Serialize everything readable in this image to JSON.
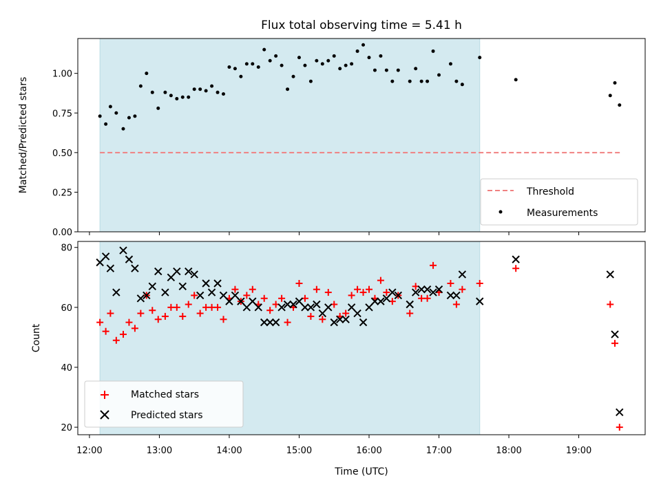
{
  "chart_data": [
    {
      "type": "scatter",
      "title": "Flux total observing time = 5.41 h",
      "xlabel": "",
      "ylabel": "Matched/Predicted stars",
      "xlim": [
        "11:50",
        "19:57"
      ],
      "ylim": [
        0,
        1.22
      ],
      "yticks": [
        "0.00",
        "0.25",
        "0.50",
        "0.75",
        "1.00"
      ],
      "grid": false,
      "legend_position": "lower-right",
      "shaded_span": {
        "start": "12:09",
        "end": "17:35",
        "color": "#d4eaf0"
      },
      "threshold": {
        "name": "Threshold",
        "value": 0.5,
        "x_start": "12:09",
        "x_end": "19:36",
        "color": "#f08080"
      },
      "series": [
        {
          "name": "Measurements",
          "color": "#000000",
          "points": [
            [
              "12:09",
              0.73
            ],
            [
              "12:14",
              0.68
            ],
            [
              "12:18",
              0.79
            ],
            [
              "12:23",
              0.75
            ],
            [
              "12:29",
              0.65
            ],
            [
              "12:34",
              0.72
            ],
            [
              "12:39",
              0.73
            ],
            [
              "12:44",
              0.92
            ],
            [
              "12:49",
              1.0
            ],
            [
              "12:54",
              0.88
            ],
            [
              "12:59",
              0.78
            ],
            [
              "13:05",
              0.88
            ],
            [
              "13:10",
              0.86
            ],
            [
              "13:15",
              0.84
            ],
            [
              "13:20",
              0.85
            ],
            [
              "13:25",
              0.85
            ],
            [
              "13:30",
              0.9
            ],
            [
              "13:35",
              0.9
            ],
            [
              "13:40",
              0.89
            ],
            [
              "13:45",
              0.92
            ],
            [
              "13:50",
              0.88
            ],
            [
              "13:55",
              0.87
            ],
            [
              "14:00",
              1.04
            ],
            [
              "14:05",
              1.03
            ],
            [
              "14:10",
              0.98
            ],
            [
              "14:15",
              1.06
            ],
            [
              "14:20",
              1.06
            ],
            [
              "14:25",
              1.04
            ],
            [
              "14:30",
              1.15
            ],
            [
              "14:35",
              1.08
            ],
            [
              "14:40",
              1.11
            ],
            [
              "14:45",
              1.05
            ],
            [
              "14:50",
              0.9
            ],
            [
              "14:55",
              0.98
            ],
            [
              "15:00",
              1.1
            ],
            [
              "15:05",
              1.05
            ],
            [
              "15:10",
              0.95
            ],
            [
              "15:15",
              1.08
            ],
            [
              "15:20",
              1.06
            ],
            [
              "15:25",
              1.08
            ],
            [
              "15:30",
              1.11
            ],
            [
              "15:35",
              1.03
            ],
            [
              "15:40",
              1.05
            ],
            [
              "15:45",
              1.06
            ],
            [
              "15:50",
              1.14
            ],
            [
              "15:55",
              1.18
            ],
            [
              "16:00",
              1.1
            ],
            [
              "16:05",
              1.02
            ],
            [
              "16:10",
              1.11
            ],
            [
              "16:15",
              1.02
            ],
            [
              "16:20",
              0.95
            ],
            [
              "16:25",
              1.02
            ],
            [
              "16:35",
              0.95
            ],
            [
              "16:40",
              1.03
            ],
            [
              "16:45",
              0.95
            ],
            [
              "16:50",
              0.95
            ],
            [
              "16:55",
              1.14
            ],
            [
              "17:00",
              0.99
            ],
            [
              "17:10",
              1.06
            ],
            [
              "17:15",
              0.95
            ],
            [
              "17:20",
              0.93
            ],
            [
              "17:35",
              1.1
            ],
            [
              "18:06",
              0.96
            ],
            [
              "19:27",
              0.86
            ],
            [
              "19:31",
              0.94
            ],
            [
              "19:35",
              0.8
            ]
          ]
        }
      ]
    },
    {
      "type": "scatter",
      "title": "",
      "xlabel": "Time (UTC)",
      "ylabel": "Count",
      "xlim": [
        "11:50",
        "19:57"
      ],
      "ylim": [
        17.5,
        82
      ],
      "xticks": [
        "12:00",
        "13:00",
        "14:00",
        "15:00",
        "16:00",
        "17:00",
        "18:00",
        "19:00"
      ],
      "yticks": [
        "20",
        "40",
        "60",
        "80"
      ],
      "grid": false,
      "legend_position": "lower-left",
      "shaded_span": {
        "start": "12:09",
        "end": "17:35",
        "color": "#d4eaf0"
      },
      "series": [
        {
          "name": "Matched stars",
          "marker": "+",
          "color": "#ff0000",
          "points": [
            [
              "12:09",
              55
            ],
            [
              "12:14",
              52
            ],
            [
              "12:18",
              58
            ],
            [
              "12:23",
              49
            ],
            [
              "12:29",
              51
            ],
            [
              "12:34",
              55
            ],
            [
              "12:39",
              53
            ],
            [
              "12:44",
              58
            ],
            [
              "12:49",
              64
            ],
            [
              "12:54",
              59
            ],
            [
              "12:59",
              56
            ],
            [
              "13:05",
              57
            ],
            [
              "13:10",
              60
            ],
            [
              "13:15",
              60
            ],
            [
              "13:20",
              57
            ],
            [
              "13:25",
              61
            ],
            [
              "13:30",
              64
            ],
            [
              "13:35",
              58
            ],
            [
              "13:40",
              60
            ],
            [
              "13:45",
              60
            ],
            [
              "13:50",
              60
            ],
            [
              "13:55",
              56
            ],
            [
              "14:00",
              63
            ],
            [
              "14:05",
              66
            ],
            [
              "14:10",
              62
            ],
            [
              "14:15",
              64
            ],
            [
              "14:20",
              66
            ],
            [
              "14:25",
              61
            ],
            [
              "14:30",
              63
            ],
            [
              "14:35",
              59
            ],
            [
              "14:40",
              61
            ],
            [
              "14:45",
              63
            ],
            [
              "14:50",
              55
            ],
            [
              "14:55",
              60
            ],
            [
              "15:00",
              68
            ],
            [
              "15:05",
              63
            ],
            [
              "15:10",
              57
            ],
            [
              "15:15",
              66
            ],
            [
              "15:20",
              56
            ],
            [
              "15:25",
              65
            ],
            [
              "15:30",
              61
            ],
            [
              "15:35",
              57
            ],
            [
              "15:40",
              58
            ],
            [
              "15:45",
              64
            ],
            [
              "15:50",
              66
            ],
            [
              "15:55",
              65
            ],
            [
              "16:00",
              66
            ],
            [
              "16:05",
              63
            ],
            [
              "16:10",
              69
            ],
            [
              "16:15",
              65
            ],
            [
              "16:20",
              62
            ],
            [
              "16:25",
              64
            ],
            [
              "16:35",
              58
            ],
            [
              "16:40",
              67
            ],
            [
              "16:45",
              63
            ],
            [
              "16:50",
              63
            ],
            [
              "16:55",
              74
            ],
            [
              "17:00",
              65
            ],
            [
              "17:10",
              68
            ],
            [
              "17:15",
              61
            ],
            [
              "17:20",
              66
            ],
            [
              "17:35",
              68
            ],
            [
              "18:06",
              73
            ],
            [
              "19:27",
              61
            ],
            [
              "19:31",
              48
            ],
            [
              "19:35",
              20
            ]
          ]
        },
        {
          "name": "Predicted stars",
          "marker": "x",
          "color": "#000000",
          "points": [
            [
              "12:09",
              75
            ],
            [
              "12:14",
              77
            ],
            [
              "12:18",
              73
            ],
            [
              "12:23",
              65
            ],
            [
              "12:29",
              79
            ],
            [
              "12:34",
              76
            ],
            [
              "12:39",
              73
            ],
            [
              "12:44",
              63
            ],
            [
              "12:49",
              64
            ],
            [
              "12:54",
              67
            ],
            [
              "12:59",
              72
            ],
            [
              "13:05",
              65
            ],
            [
              "13:10",
              70
            ],
            [
              "13:15",
              72
            ],
            [
              "13:20",
              67
            ],
            [
              "13:25",
              72
            ],
            [
              "13:30",
              71
            ],
            [
              "13:35",
              64
            ],
            [
              "13:40",
              68
            ],
            [
              "13:45",
              65
            ],
            [
              "13:50",
              68
            ],
            [
              "13:55",
              64
            ],
            [
              "14:00",
              62
            ],
            [
              "14:05",
              64
            ],
            [
              "14:10",
              62
            ],
            [
              "14:15",
              60
            ],
            [
              "14:20",
              62
            ],
            [
              "14:25",
              60
            ],
            [
              "14:30",
              55
            ],
            [
              "14:35",
              55
            ],
            [
              "14:40",
              55
            ],
            [
              "14:45",
              60
            ],
            [
              "14:50",
              61
            ],
            [
              "14:55",
              61
            ],
            [
              "15:00",
              62
            ],
            [
              "15:05",
              60
            ],
            [
              "15:10",
              60
            ],
            [
              "15:15",
              61
            ],
            [
              "15:20",
              58
            ],
            [
              "15:25",
              60
            ],
            [
              "15:30",
              55
            ],
            [
              "15:35",
              56
            ],
            [
              "15:40",
              56
            ],
            [
              "15:45",
              60
            ],
            [
              "15:50",
              58
            ],
            [
              "15:55",
              55
            ],
            [
              "16:00",
              60
            ],
            [
              "16:05",
              62
            ],
            [
              "16:10",
              62
            ],
            [
              "16:15",
              63
            ],
            [
              "16:20",
              65
            ],
            [
              "16:25",
              64
            ],
            [
              "16:35",
              61
            ],
            [
              "16:40",
              65
            ],
            [
              "16:45",
              66
            ],
            [
              "16:50",
              66
            ],
            [
              "16:55",
              65
            ],
            [
              "17:00",
              66
            ],
            [
              "17:10",
              64
            ],
            [
              "17:15",
              64
            ],
            [
              "17:20",
              71
            ],
            [
              "17:35",
              62
            ],
            [
              "18:06",
              76
            ],
            [
              "19:27",
              71
            ],
            [
              "19:31",
              51
            ],
            [
              "19:35",
              25
            ]
          ]
        }
      ]
    }
  ]
}
